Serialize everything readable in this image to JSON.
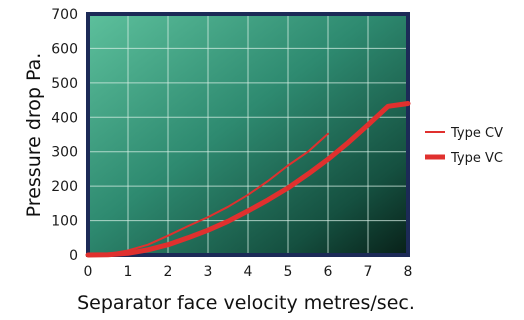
{
  "chart_data": {
    "type": "line",
    "xlabel": "Separator face velocity metres/sec.",
    "ylabel": "Pressure drop Pa.",
    "xlim": [
      0,
      8
    ],
    "ylim": [
      0,
      700
    ],
    "x_ticks": [
      0,
      1,
      2,
      3,
      4,
      5,
      6,
      7,
      8
    ],
    "y_ticks": [
      0,
      100,
      200,
      300,
      400,
      500,
      600,
      700
    ],
    "grid": true,
    "legend_position": "right",
    "series": [
      {
        "name": "Type CV",
        "color": "#e0302e",
        "x": [
          0,
          0.5,
          1,
          1.5,
          2,
          2.5,
          3,
          3.5,
          4,
          4.5,
          5,
          5.5,
          6
        ],
        "y": [
          0,
          3,
          13,
          30,
          56,
          84,
          110,
          140,
          175,
          215,
          260,
          300,
          352
        ]
      },
      {
        "name": "Type VC",
        "color": "#e0302e",
        "x": [
          0,
          0.5,
          1,
          1.5,
          2,
          2.5,
          3,
          3.5,
          4,
          4.5,
          5,
          5.5,
          6,
          6.5,
          7,
          7.5,
          8
        ],
        "y": [
          0,
          1,
          5,
          15,
          30,
          50,
          72,
          98,
          128,
          160,
          195,
          235,
          278,
          326,
          378,
          432,
          440
        ]
      }
    ]
  }
}
